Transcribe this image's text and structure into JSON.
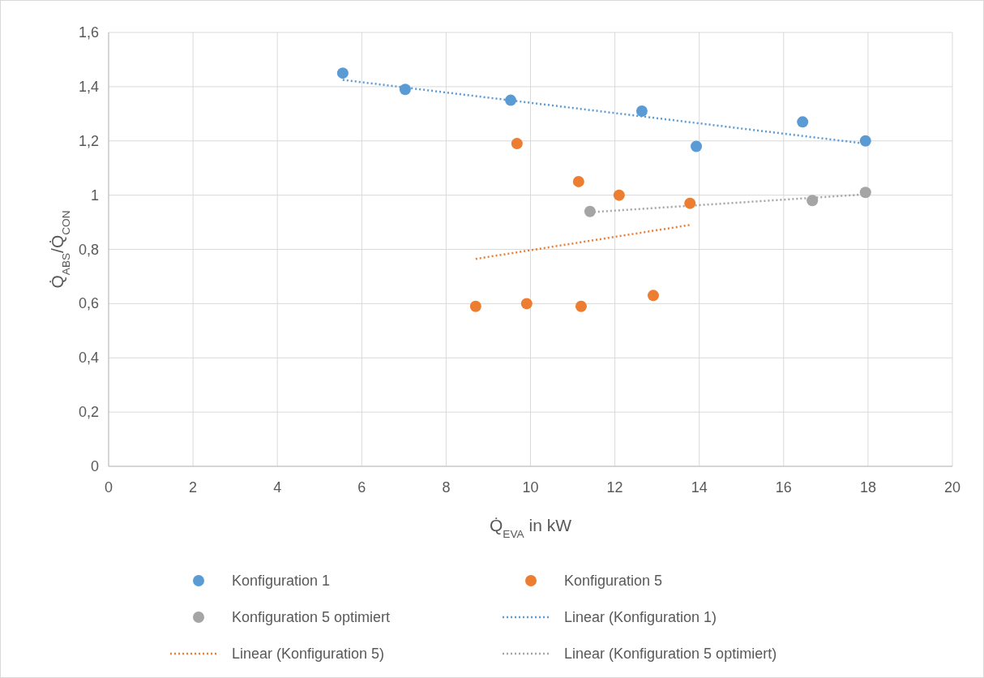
{
  "chart_data": {
    "type": "scatter",
    "xlabel": "Q̇$_{EVA}$ in kW",
    "ylabel": "Q̇$_{ABS}$/Q̇$_{CON}$",
    "xlim": [
      0,
      20
    ],
    "ylim": [
      0,
      1.6
    ],
    "xticks": [
      0,
      2,
      4,
      6,
      8,
      10,
      12,
      14,
      16,
      18,
      20
    ],
    "yticks": [
      0,
      {
        "value": 0.2,
        "label": "0,2"
      },
      {
        "value": 0.4,
        "label": "0,4"
      },
      {
        "value": 0.6,
        "label": "0,6"
      },
      {
        "value": 0.8,
        "label": "0,8"
      },
      1,
      {
        "value": 1.2,
        "label": "1,2"
      },
      {
        "value": 1.4,
        "label": "1,4"
      },
      {
        "value": 1.6,
        "label": "1,6"
      }
    ],
    "grid": true,
    "legend": "bottom",
    "marker": "circle",
    "series": [
      {
        "name": "Konfiguration 1",
        "color": "#5b9bd5",
        "x": [
          5.55,
          7.03,
          9.53,
          12.64,
          13.93,
          16.45,
          17.94
        ],
        "values": [
          1.45,
          1.39,
          1.35,
          1.31,
          1.18,
          1.27,
          1.2
        ]
      },
      {
        "name": "Konfiguration 5",
        "color": "#ed7d31",
        "x": [
          9.68,
          11.14,
          12.1,
          13.78,
          8.7,
          9.91,
          11.2,
          12.91
        ],
        "values": [
          1.19,
          1.05,
          1.0,
          0.97,
          0.59,
          0.6,
          0.59,
          0.63
        ]
      },
      {
        "name": "Konfiguration 5 optimiert",
        "color": "#a5a5a5",
        "x": [
          11.41,
          16.68,
          17.94
        ],
        "values": [
          0.94,
          0.98,
          1.01
        ]
      },
      {
        "name": "Linear (Konfiguration 1)",
        "type": "line",
        "marker": "none",
        "line_style": "dotted",
        "color": "#5b9bd5",
        "x": [
          5.55,
          17.94
        ],
        "values": [
          1.425,
          1.19
        ]
      },
      {
        "name": "Linear (Konfiguration 5)",
        "type": "line",
        "marker": "none",
        "line_style": "dotted",
        "color": "#ed7d31",
        "x": [
          8.7,
          13.78
        ],
        "values": [
          0.765,
          0.89
        ]
      },
      {
        "name": "Linear (Konfiguration 5 optimiert)",
        "type": "line",
        "marker": "none",
        "line_style": "dotted",
        "color": "#a5a5a5",
        "x": [
          11.41,
          17.94
        ],
        "values": [
          0.937,
          1.003
        ]
      }
    ]
  }
}
